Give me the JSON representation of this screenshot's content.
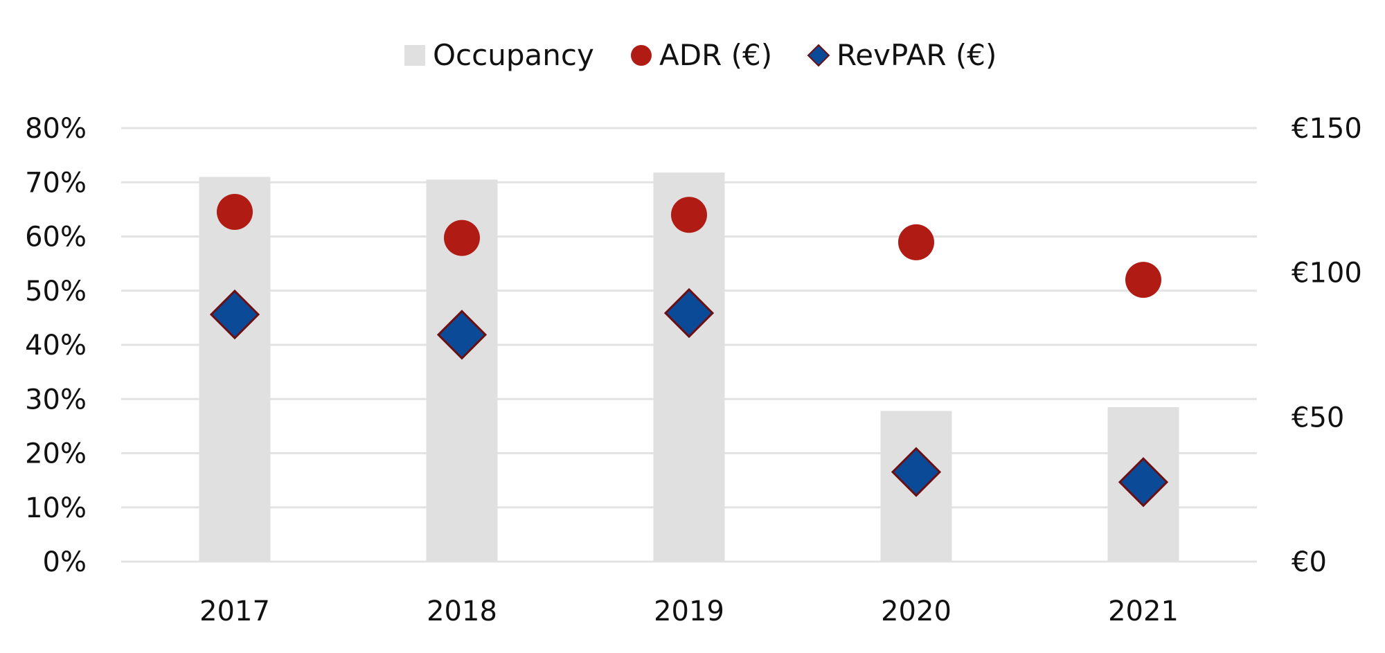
{
  "chart_data": {
    "type": "bar",
    "categories": [
      "2017",
      "2018",
      "2019",
      "2020",
      "2021"
    ],
    "series": [
      {
        "name": "Occupancy",
        "type": "bar",
        "axis": "left",
        "unit": "%",
        "color": "#e0e0e0",
        "values": [
          71,
          70.5,
          71.8,
          27.8,
          28.5
        ]
      },
      {
        "name": "ADR (€)",
        "type": "scatter",
        "marker": "circle",
        "axis": "right",
        "unit": "€",
        "color": "#b01c14",
        "values": [
          121,
          112,
          120,
          110.5,
          97.5
        ]
      },
      {
        "name": "RevPAR (€)",
        "type": "scatter",
        "marker": "diamond",
        "axis": "right",
        "unit": "€",
        "color": "#0b4a97",
        "edge_color": "#6b0f12",
        "values": [
          85.5,
          78.5,
          86,
          31,
          27.5
        ]
      }
    ],
    "y_left": {
      "min": 0,
      "max": 80,
      "ticks": [
        "0%",
        "10%",
        "20%",
        "30%",
        "40%",
        "50%",
        "60%",
        "70%",
        "80%"
      ]
    },
    "y_right": {
      "min": 0,
      "max": 150,
      "ticks": [
        "€0",
        "€50",
        "€100",
        "€150"
      ]
    },
    "grid": true,
    "legend_position": "top-center",
    "title": "",
    "xlabel": "",
    "ylabel": ""
  }
}
